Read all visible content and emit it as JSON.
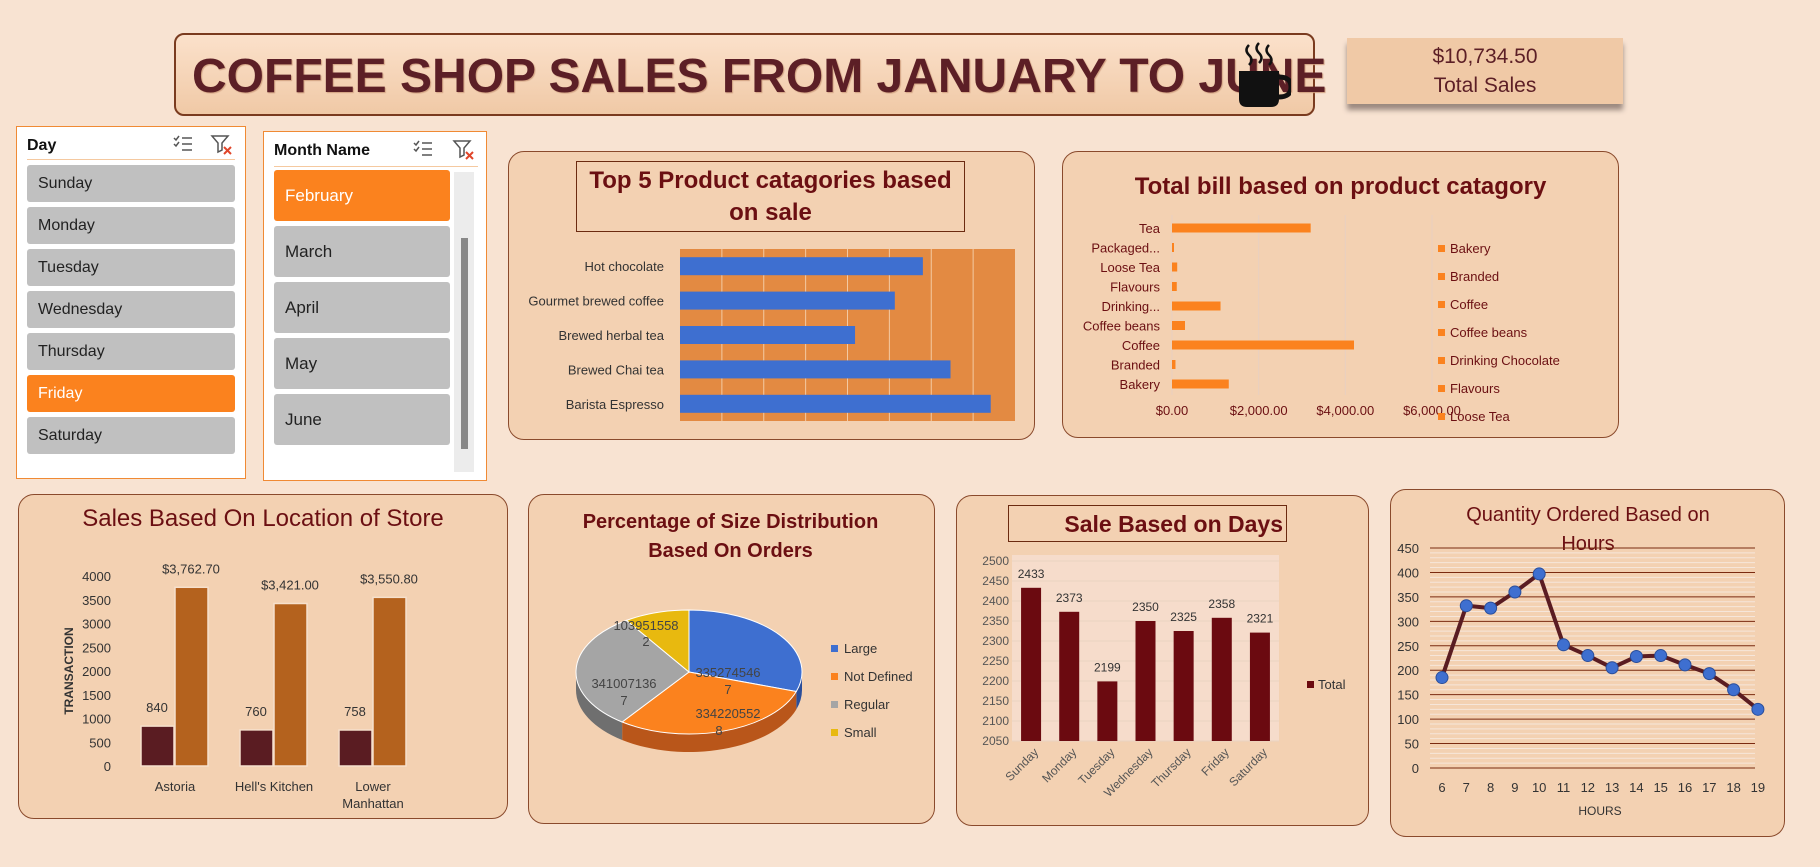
{
  "header": {
    "title": "COFFEE SHOP SALES FROM JANUARY TO JUNE",
    "total_value": "$10,734.50",
    "total_label": "Total Sales"
  },
  "slicers": {
    "day": {
      "title": "Day",
      "items": [
        {
          "label": "Sunday",
          "selected": false
        },
        {
          "label": "Monday",
          "selected": false
        },
        {
          "label": "Tuesday",
          "selected": false
        },
        {
          "label": "Wednesday",
          "selected": false
        },
        {
          "label": "Thursday",
          "selected": false
        },
        {
          "label": "Friday",
          "selected": true
        },
        {
          "label": "Saturday",
          "selected": false
        }
      ]
    },
    "month": {
      "title": "Month Name",
      "items": [
        {
          "label": "February",
          "selected": true
        },
        {
          "label": "March",
          "selected": false
        },
        {
          "label": "April",
          "selected": false
        },
        {
          "label": "May",
          "selected": false
        },
        {
          "label": "June",
          "selected": false
        }
      ]
    }
  },
  "colors": {
    "accent": "#fb821e",
    "panel": "#f3d1b2",
    "title_red": "#6b0f12",
    "bar_blue": "#3e6fd0",
    "bar_maroon": "#6b0a10"
  },
  "chart_data": [
    {
      "type": "bar",
      "id": "top5",
      "title": "Top 5 Product catagories based on sale",
      "orientation": "horizontal",
      "categories": [
        "Hot chocolate",
        "Gourmet brewed coffee",
        "Brewed herbal tea",
        "Brewed Chai tea",
        "Barista Espresso"
      ],
      "values": [
        580,
        513,
        418,
        646,
        742
      ],
      "xlim": [
        0,
        800
      ],
      "grid": true
    },
    {
      "type": "bar",
      "id": "bill",
      "title": "Total bill based on product catagory",
      "orientation": "horizontal",
      "categories": [
        "Tea",
        "Packaged...",
        "Loose Tea",
        "Flavours",
        "Drinking...",
        "Coffee beans",
        "Coffee",
        "Branded",
        "Bakery"
      ],
      "values": [
        3200,
        30,
        120,
        110,
        1120,
        300,
        4200,
        80,
        1310
      ],
      "xticks": [
        "$0.00",
        "$2,000.00",
        "$4,000.00",
        "$6,000.00"
      ],
      "xlim": [
        0,
        6000
      ],
      "legend": [
        "Bakery",
        "Branded",
        "Coffee",
        "Coffee beans",
        "Drinking Chocolate",
        "Flavours",
        "Loose Tea"
      ],
      "legend_position": "right"
    },
    {
      "type": "bar",
      "id": "location",
      "title": "Sales Based On Location of Store",
      "categories": [
        "Astoria",
        "Hell's Kitchen",
        "Lower Manhattan"
      ],
      "series": [
        {
          "values": [
            840,
            760,
            758
          ],
          "labels": [
            "840",
            "760",
            "758"
          ]
        },
        {
          "values": [
            3762.7,
            3421.0,
            3550.8
          ],
          "labels": [
            "$3,762.70",
            "$3,421.00",
            "$3,550.80"
          ]
        }
      ],
      "ylabel": "TRANSACTION",
      "yticks": [
        "0",
        "500",
        "1000",
        "1500",
        "2000",
        "2500",
        "3000",
        "3500",
        "4000"
      ],
      "ylim": [
        0,
        4000
      ]
    },
    {
      "type": "pie",
      "id": "size",
      "title": "Percentage of Size Distribution Based On Orders",
      "slices": [
        {
          "name": "Large",
          "value": 3352745467,
          "label_a": "335274546",
          "label_b": "7"
        },
        {
          "name": "Not Defined",
          "value": 3342205528,
          "label_a": "334220552",
          "label_b": "8"
        },
        {
          "name": "Regular",
          "value": 3410071367,
          "label_a": "341007136",
          "label_b": "7"
        },
        {
          "name": "Small",
          "value": 1039515582,
          "label_a": "103951558",
          "label_b": "2"
        }
      ],
      "legend": [
        "Large",
        "Not Defined",
        "Regular",
        "Small"
      ],
      "legend_position": "right"
    },
    {
      "type": "bar",
      "id": "days",
      "title": "Sale Based on Days",
      "categories": [
        "Sunday",
        "Monday",
        "Tuesday",
        "Wednesday",
        "Thursday",
        "Friday",
        "Saturday"
      ],
      "values": [
        2433,
        2373,
        2199,
        2350,
        2325,
        2358,
        2321
      ],
      "yticks": [
        "2050",
        "2100",
        "2150",
        "2200",
        "2250",
        "2300",
        "2350",
        "2400",
        "2450",
        "2500"
      ],
      "ylim": [
        2050,
        2500
      ],
      "legend": [
        "Total"
      ],
      "legend_position": "right"
    },
    {
      "type": "line",
      "id": "hours",
      "title": "Quantity Ordered Based on Hours",
      "x": [
        6,
        7,
        8,
        9,
        10,
        11,
        12,
        13,
        14,
        15,
        16,
        17,
        18,
        19
      ],
      "values": [
        185,
        332,
        327,
        360,
        397,
        252,
        230,
        205,
        228,
        230,
        211,
        193,
        160,
        120
      ],
      "xlabel": "HOURS",
      "yticks": [
        "0",
        "50",
        "100",
        "150",
        "200",
        "250",
        "300",
        "350",
        "400",
        "450"
      ],
      "ylim": [
        0,
        450
      ]
    }
  ]
}
